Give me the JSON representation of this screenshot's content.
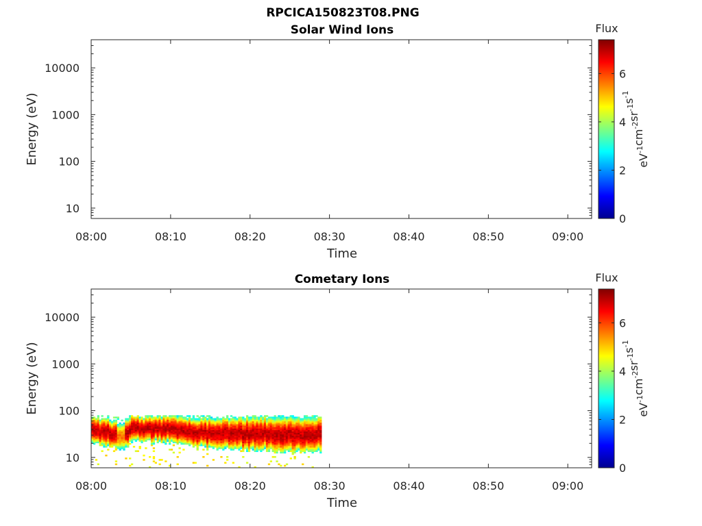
{
  "figure_title": "RPCICA150823T08.PNG",
  "colorbar": {
    "label": "Flux",
    "unit_base": [
      "eV",
      "cm",
      "sr",
      "s"
    ],
    "unit_exps": [
      "-1",
      "-2",
      "-1",
      "-1"
    ],
    "ticks": [
      "0",
      "2",
      "4",
      "6"
    ],
    "range": [
      0,
      7.4
    ],
    "colormap": "jet"
  },
  "chart_data": [
    {
      "type": "heatmap",
      "title": "Solar Wind Ions",
      "xlabel": "Time",
      "ylabel": "Energy (eV)",
      "xticks": [
        "08:00",
        "08:10",
        "08:20",
        "08:30",
        "08:40",
        "08:50",
        "09:00"
      ],
      "xlim": [
        "08:00",
        "09:03"
      ],
      "yticks": [
        "10",
        "100",
        "1000",
        "10000"
      ],
      "ylim": [
        6,
        40000
      ],
      "yscale": "log",
      "data": []
    },
    {
      "type": "heatmap",
      "title": "Cometary Ions",
      "xlabel": "Time",
      "ylabel": "Energy (eV)",
      "xticks": [
        "08:00",
        "08:10",
        "08:20",
        "08:30",
        "08:40",
        "08:50",
        "09:00"
      ],
      "xlim": [
        "08:00",
        "09:03"
      ],
      "yticks": [
        "10",
        "100",
        "1000",
        "10000"
      ],
      "ylim": [
        6,
        40000
      ],
      "yscale": "log",
      "data": {
        "time_range": [
          "08:00",
          "08:29"
        ],
        "peak_energy_range": [
          25,
          60
        ],
        "full_extent_energy": [
          6,
          80
        ],
        "peak_flux": 7.2,
        "series_energy_bounds": [
          {
            "t": "08:00",
            "low": 20,
            "high": 75
          },
          {
            "t": "08:04",
            "low": 14,
            "high": 60
          },
          {
            "t": "08:05",
            "low": 22,
            "high": 78
          },
          {
            "t": "08:10",
            "low": 20,
            "high": 78
          },
          {
            "t": "08:15",
            "low": 15,
            "high": 70
          },
          {
            "t": "08:20",
            "low": 14,
            "high": 75
          },
          {
            "t": "08:25",
            "low": 13,
            "high": 75
          },
          {
            "t": "08:29",
            "low": 13,
            "high": 75
          }
        ]
      }
    }
  ]
}
